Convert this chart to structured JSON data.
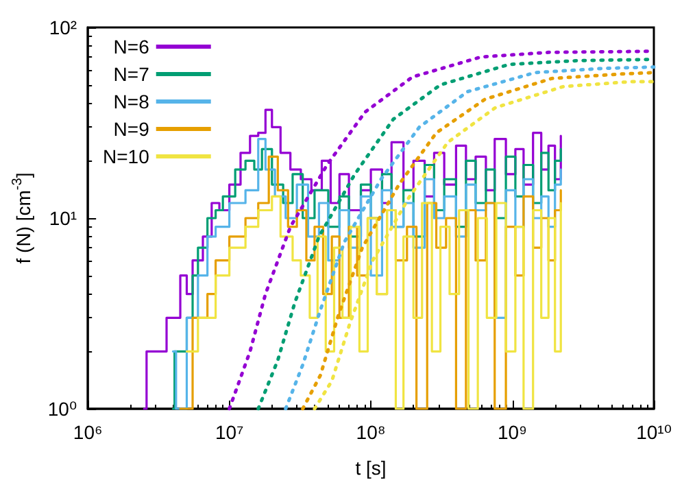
{
  "chart_data": {
    "type": "step",
    "xlabel": "t [s]",
    "ylabel": "f (N) [cm$^{-3}$]",
    "log": "xy",
    "grid": false,
    "legend": "top left",
    "marker": "none",
    "xlim": [
      1000000.0,
      10000000000.0
    ],
    "xticks": [
      {
        "value": 1000000.0,
        "label": "10⁶"
      },
      {
        "value": 10000000.0,
        "label": "10⁷"
      },
      {
        "value": 100000000.0,
        "label": "10⁸"
      },
      {
        "value": 1000000000.0,
        "label": "10⁹"
      },
      {
        "value": 10000000000.0,
        "label": "10¹⁰"
      }
    ],
    "ylim": [
      1,
      100
    ],
    "yticks": [
      {
        "value": 1,
        "label": "10⁰"
      },
      {
        "value": 10,
        "label": "10¹"
      },
      {
        "value": 100,
        "label": "10²"
      }
    ],
    "series": [
      {
        "name": "N=6",
        "color": "#9400d3",
        "line_style": "solid",
        "x": [
          2500000.0,
          2600000.0,
          3500000.0,
          3600000.0,
          4500000.0,
          5000000.0,
          5500000.0,
          6500000.0,
          7500000.0,
          8500000.0,
          10000000.0,
          12000000.0,
          14000000.0,
          16000000.0,
          18000000.0,
          20000000.0,
          23000000.0,
          27000000.0,
          32000000.0,
          38000000.0,
          45000000.0,
          52000000.0,
          60000000.0,
          70000000.0,
          85000000.0,
          100000000.0,
          120000000.0,
          140000000.0,
          170000000.0,
          200000000.0,
          240000000.0,
          280000000.0,
          330000000.0,
          400000000.0,
          470000000.0,
          550000000.0,
          650000000.0,
          750000000.0,
          900000000.0,
          1050000000.0,
          1200000000.0,
          1400000000.0,
          1600000000.0,
          1800000000.0,
          2000000000.0,
          2200000000.0
        ],
        "values": [
          1,
          2,
          2,
          3,
          5,
          4,
          6,
          8,
          12,
          11,
          15,
          22,
          27,
          28,
          37,
          30,
          22,
          18,
          16,
          14,
          20,
          12,
          17,
          11,
          14,
          18,
          12,
          25,
          14,
          20,
          13,
          22,
          15,
          24,
          16,
          21,
          14,
          26,
          17,
          23,
          15,
          28,
          18,
          24,
          16,
          27
        ]
      },
      {
        "name": "N=7",
        "color": "#009e73",
        "line_style": "solid",
        "x": [
          4000000.0,
          4100000.0,
          5000000.0,
          5500000.0,
          6000000.0,
          7000000.0,
          8000000.0,
          9000000.0,
          11000000.0,
          13000000.0,
          15000000.0,
          17000000.0,
          20000000.0,
          24000000.0,
          28000000.0,
          33000000.0,
          40000000.0,
          50000000.0,
          60000000.0,
          70000000.0,
          85000000.0,
          100000000.0,
          120000000.0,
          140000000.0,
          170000000.0,
          200000000.0,
          240000000.0,
          280000000.0,
          330000000.0,
          400000000.0,
          470000000.0,
          550000000.0,
          650000000.0,
          750000000.0,
          900000000.0,
          1050000000.0,
          1200000000.0,
          1400000000.0,
          1600000000.0,
          1800000000.0,
          2000000000.0,
          2200000000.0
        ],
        "values": [
          1,
          2,
          3,
          5,
          7,
          10,
          11,
          13,
          18,
          20,
          18,
          23,
          15,
          12,
          17,
          10,
          14,
          9,
          13,
          8,
          15,
          10,
          17,
          9,
          14,
          8,
          19,
          11,
          16,
          9,
          20,
          12,
          18,
          10,
          21,
          13,
          19,
          12,
          22,
          14,
          20,
          23
        ]
      },
      {
        "name": "N=8",
        "color": "#56b4e9",
        "line_style": "solid",
        "x": [
          4000000.0,
          4200000.0,
          5000000.0,
          6000000.0,
          7000000.0,
          8000000.0,
          10000000.0,
          13000000.0,
          16000000.0,
          18000000.0,
          21000000.0,
          25000000.0,
          30000000.0,
          36000000.0,
          43000000.0,
          50000000.0,
          60000000.0,
          70000000.0,
          85000000.0,
          100000000.0,
          120000000.0,
          140000000.0,
          170000000.0,
          200000000.0,
          240000000.0,
          280000000.0,
          330000000.0,
          400000000.0,
          470000000.0,
          550000000.0,
          650000000.0,
          750000000.0,
          900000000.0,
          1050000000.0,
          1200000000.0,
          1400000000.0,
          1600000000.0,
          1800000000.0,
          2000000000.0,
          2200000000.0
        ],
        "values": [
          2,
          1,
          3,
          5,
          8,
          9,
          12,
          14,
          26,
          18,
          13,
          10,
          15,
          8,
          12,
          6,
          11,
          7,
          13,
          5,
          14,
          9,
          12,
          7,
          16,
          10,
          13,
          8,
          15,
          11,
          12,
          3,
          14,
          9,
          16,
          10,
          13,
          9,
          15,
          18
        ]
      },
      {
        "name": "N=9",
        "color": "#e69f00",
        "line_style": "solid",
        "x": [
          4500000.0,
          5500000.0,
          7000000.0,
          8000000.0,
          10000000.0,
          13000000.0,
          16000000.0,
          19000000.0,
          22000000.0,
          26000000.0,
          30000000.0,
          35000000.0,
          40000000.0,
          46000000.0,
          53000000.0,
          60000000.0,
          70000000.0,
          80000000.0,
          95000000.0,
          110000000.0,
          130000000.0,
          150000000.0,
          180000000.0,
          210000000.0,
          250000000.0,
          290000000.0,
          340000000.0,
          400000000.0,
          470000000.0,
          550000000.0,
          650000000.0,
          750000000.0,
          900000000.0,
          1050000000.0,
          1200000000.0,
          1400000000.0,
          1600000000.0,
          1800000000.0,
          2000000000.0,
          2200000000.0
        ],
        "values": [
          1,
          3,
          4,
          6,
          8,
          10,
          12,
          21,
          14,
          9,
          11,
          6,
          9,
          4,
          8,
          3,
          9,
          5,
          10,
          4,
          11,
          6,
          9,
          1,
          12,
          7,
          10,
          1,
          11,
          6,
          12,
          1,
          9,
          5,
          13,
          7,
          10,
          6,
          11,
          14
        ]
      },
      {
        "name": "N=10",
        "color": "#f0e442",
        "line_style": "solid",
        "x": [
          5000000.0,
          6000000.0,
          8000000.0,
          10000000.0,
          13000000.0,
          16000000.0,
          20000000.0,
          23000000.0,
          28000000.0,
          32000000.0,
          37000000.0,
          42000000.0,
          48000000.0,
          55000000.0,
          63000000.0,
          72000000.0,
          83000000.0,
          95000000.0,
          110000000.0,
          130000000.0,
          150000000.0,
          170000000.0,
          200000000.0,
          230000000.0,
          270000000.0,
          310000000.0,
          360000000.0,
          420000000.0,
          490000000.0,
          570000000.0,
          660000000.0,
          770000000.0,
          900000000.0,
          1050000000.0,
          1200000000.0,
          1400000000.0,
          1600000000.0,
          1800000000.0,
          2000000000.0,
          2200000000.0
        ],
        "values": [
          2,
          3,
          5,
          7,
          9,
          11,
          13,
          8,
          6,
          5,
          3,
          8,
          2,
          7,
          3,
          9,
          2,
          10,
          4,
          11,
          1,
          8,
          3,
          12,
          2,
          9,
          4,
          11,
          1,
          10,
          3,
          12,
          2,
          9,
          1,
          11,
          3,
          10,
          2,
          12
        ]
      },
      {
        "type": "line",
        "color": "#9400d3",
        "line_style": "dotted",
        "x": [
          10000000.0,
          14000000.0,
          18000000.0,
          27000000.0,
          49000000.0,
          91000000.0,
          197000000.0,
          600000000.0,
          1800000000.0,
          10000000000.0
        ],
        "values": [
          1,
          2,
          4,
          9,
          19,
          36,
          55,
          70,
          74,
          75
        ]
      },
      {
        "type": "line",
        "color": "#009e73",
        "line_style": "dotted",
        "x": [
          16000000.0,
          22000000.0,
          29000000.0,
          43000000.0,
          77000000.0,
          144000000.0,
          310000000.0,
          950000000.0,
          2900000000.0,
          10000000000.0
        ],
        "values": [
          1,
          1.8,
          3.6,
          8,
          17,
          33,
          50,
          64,
          67,
          68
        ]
      },
      {
        "type": "line",
        "color": "#56b4e9",
        "line_style": "dotted",
        "x": [
          25000000.0,
          33000000.0,
          44000000.0,
          65000000.0,
          118000000.0,
          220000000.0,
          480000000.0,
          1450000000.0,
          4400000000.0,
          10000000000.0
        ],
        "values": [
          1,
          1.7,
          3.3,
          7.5,
          16,
          30,
          46,
          58,
          61,
          62
        ]
      },
      {
        "type": "line",
        "color": "#e69f00",
        "line_style": "dotted",
        "x": [
          33000000.0,
          44000000.0,
          59000000.0,
          87000000.0,
          158000000.0,
          290000000.0,
          640000000.0,
          1900000000.0,
          5900000000.0,
          10000000000.0
        ],
        "values": [
          1,
          1.5,
          3.1,
          7,
          15,
          28,
          42,
          54,
          57,
          58
        ]
      },
      {
        "type": "line",
        "color": "#f0e442",
        "line_style": "dotted",
        "x": [
          40000000.0,
          53000000.0,
          71000000.0,
          103000000.0,
          188000000.0,
          350000000.0,
          760000000.0,
          2300000000.0,
          7000000000.0,
          10000000000.0
        ],
        "values": [
          1,
          1.4,
          2.8,
          6,
          13,
          25,
          38,
          49,
          52,
          52
        ]
      }
    ]
  }
}
